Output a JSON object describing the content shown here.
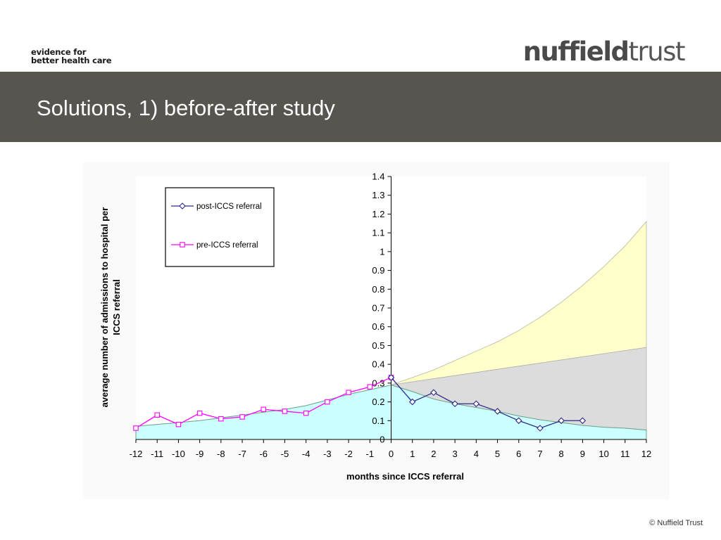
{
  "header": {
    "tagline_line1": "evidence for",
    "tagline_line2": "better health care",
    "logo_bold": "nuffield",
    "logo_light": "trust"
  },
  "slide": {
    "title": "Solutions, 1) before-after study"
  },
  "footer": {
    "copyright": "© Nuffield Trust"
  },
  "colors": {
    "banner": "#58544f",
    "post_series": "#2a2a8a",
    "pre_series": "#ff00ff",
    "cyan_area": "#ccffff",
    "grey_band": "#dcdcdc",
    "yellow_band": "#ffffcc"
  },
  "chart_data": {
    "type": "line",
    "xlabel": "months since ICCS referral",
    "ylabel": "average number of admissions to hospital per ICCS referral",
    "xlim": [
      -12,
      12
    ],
    "ylim": [
      0,
      1.4
    ],
    "x_ticks": [
      -12,
      -11,
      -10,
      -9,
      -8,
      -7,
      -6,
      -5,
      -4,
      -3,
      -2,
      -1,
      0,
      1,
      2,
      3,
      4,
      5,
      6,
      7,
      8,
      9,
      10,
      11,
      12
    ],
    "y_ticks": [
      0,
      0.1,
      0.2,
      0.3,
      0.4,
      0.5,
      0.6,
      0.7,
      0.8,
      0.9,
      1,
      1.1,
      1.2,
      1.3,
      1.4
    ],
    "legend_position": "top-left",
    "series": [
      {
        "name": "post-ICCS referral",
        "marker": "diamond",
        "x": [
          0,
          1,
          2,
          3,
          4,
          5,
          6,
          7,
          8,
          9
        ],
        "y": [
          0.33,
          0.2,
          0.25,
          0.19,
          0.19,
          0.15,
          0.1,
          0.06,
          0.1,
          0.1
        ]
      },
      {
        "name": "pre-ICCS referral",
        "marker": "square",
        "x": [
          -12,
          -11,
          -10,
          -9,
          -8,
          -7,
          -6,
          -5,
          -4,
          -3,
          -2,
          -1,
          0
        ],
        "y": [
          0.06,
          0.13,
          0.08,
          0.14,
          0.11,
          0.12,
          0.16,
          0.15,
          0.14,
          0.2,
          0.25,
          0.28,
          0.33
        ]
      }
    ],
    "areas": [
      {
        "role": "fitted trend (cyan fill)",
        "x": [
          -12,
          -11,
          -10,
          -9,
          -8,
          -7,
          -6,
          -5,
          -4,
          -3,
          -2,
          -1,
          0,
          1,
          2,
          3,
          4,
          5,
          6,
          7,
          8,
          9,
          10,
          11,
          12
        ],
        "y": [
          0.07,
          0.08,
          0.09,
          0.1,
          0.115,
          0.13,
          0.145,
          0.16,
          0.18,
          0.21,
          0.24,
          0.265,
          0.29,
          0.255,
          0.215,
          0.19,
          0.17,
          0.15,
          0.125,
          0.105,
          0.09,
          0.075,
          0.065,
          0.06,
          0.05
        ]
      },
      {
        "role": "linear projection (grey band upper edge)",
        "x": [
          0,
          12
        ],
        "y": [
          0.29,
          0.49
        ]
      },
      {
        "role": "exponential projection (yellow band upper edge)",
        "x": [
          0,
          1,
          2,
          3,
          4,
          5,
          6,
          7,
          8,
          9,
          10,
          11,
          12
        ],
        "y": [
          0.29,
          0.33,
          0.37,
          0.42,
          0.47,
          0.52,
          0.58,
          0.65,
          0.73,
          0.82,
          0.92,
          1.03,
          1.16
        ]
      }
    ]
  }
}
